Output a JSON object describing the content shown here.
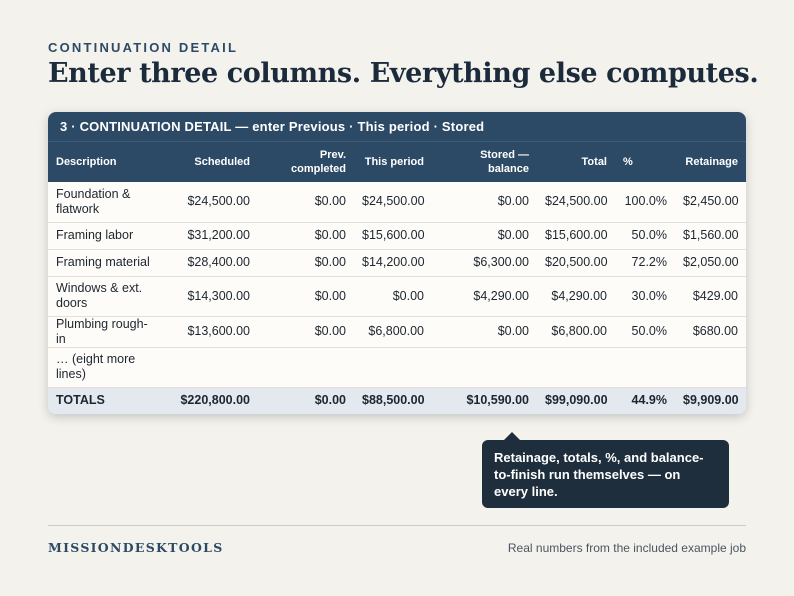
{
  "eyebrow": "CONTINUATION DETAIL",
  "headline": "Enter three columns. Everything else computes.",
  "card_title": "3 · CONTINUATION DETAIL — enter Previous · This period · Stored",
  "columns": {
    "description": "Description",
    "scheduled": "Scheduled",
    "prev": "Prev. completed",
    "this_period": "This period",
    "stored": "Stored — balance",
    "total": "Total",
    "pct": "%",
    "retainage": "Retainage"
  },
  "rows": [
    {
      "description": "Foundation & flatwork",
      "scheduled": "$24,500.00",
      "prev": "$0.00",
      "this_period": "$24,500.00",
      "stored": "$0.00",
      "total": "$24,500.00",
      "pct": "100.0%",
      "retainage": "$2,450.00"
    },
    {
      "description": "Framing labor",
      "scheduled": "$31,200.00",
      "prev": "$0.00",
      "this_period": "$15,600.00",
      "stored": "$0.00",
      "total": "$15,600.00",
      "pct": "50.0%",
      "retainage": "$1,560.00"
    },
    {
      "description": "Framing material",
      "scheduled": "$28,400.00",
      "prev": "$0.00",
      "this_period": "$14,200.00",
      "stored": "$6,300.00",
      "total": "$20,500.00",
      "pct": "72.2%",
      "retainage": "$2,050.00"
    },
    {
      "description": "Windows & ext. doors",
      "scheduled": "$14,300.00",
      "prev": "$0.00",
      "this_period": "$0.00",
      "stored": "$4,290.00",
      "total": "$4,290.00",
      "pct": "30.0%",
      "retainage": "$429.00"
    },
    {
      "description": "Plumbing rough-in",
      "scheduled": "$13,600.00",
      "prev": "$0.00",
      "this_period": "$6,800.00",
      "stored": "$0.00",
      "total": "$6,800.00",
      "pct": "50.0%",
      "retainage": "$680.00"
    },
    {
      "description": "… (eight more lines)",
      "scheduled": "",
      "prev": "",
      "this_period": "",
      "stored": "",
      "total": "",
      "pct": "",
      "retainage": ""
    }
  ],
  "totals": {
    "description": "TOTALS",
    "scheduled": "$220,800.00",
    "prev": "$0.00",
    "this_period": "$88,500.00",
    "stored": "$10,590.00",
    "total": "$99,090.00",
    "pct": "44.9%",
    "retainage": "$9,909.00"
  },
  "callout": "Retainage, totals, %, and balance-to-finish run themselves — on every line.",
  "brand": "MISSIONDESKTOOLS",
  "footnote": "Real numbers from the included example job"
}
